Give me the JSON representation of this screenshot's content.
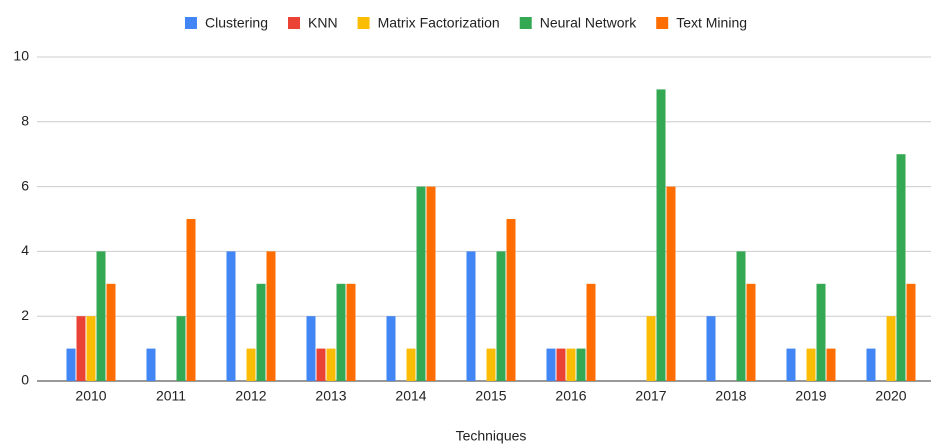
{
  "chart_data": {
    "type": "bar",
    "x_label": "Techniques",
    "categories": [
      "2010",
      "2011",
      "2012",
      "2013",
      "2014",
      "2015",
      "2016",
      "2017",
      "2018",
      "2019",
      "2020"
    ],
    "series": [
      {
        "name": "Clustering",
        "color": "#4285f4",
        "values": [
          1,
          1,
          4,
          2,
          2,
          4,
          1,
          0,
          2,
          1,
          1
        ]
      },
      {
        "name": "KNN",
        "color": "#ea4335",
        "values": [
          2,
          0,
          0,
          1,
          0,
          0,
          1,
          0,
          0,
          0,
          0
        ]
      },
      {
        "name": "Matrix Factorization",
        "color": "#fbbc04",
        "values": [
          2,
          0,
          1,
          1,
          1,
          1,
          1,
          2,
          0,
          1,
          2
        ]
      },
      {
        "name": "Neural Network",
        "color": "#34a853",
        "values": [
          4,
          2,
          3,
          3,
          6,
          4,
          1,
          9,
          4,
          3,
          7
        ]
      },
      {
        "name": "Text Mining",
        "color": "#ff6d01",
        "values": [
          3,
          5,
          4,
          3,
          6,
          5,
          3,
          6,
          3,
          1,
          3
        ]
      }
    ],
    "ylim": [
      0,
      10
    ],
    "yticks": [
      0,
      2,
      4,
      6,
      8,
      10
    ],
    "grid": true,
    "legend": "top"
  }
}
